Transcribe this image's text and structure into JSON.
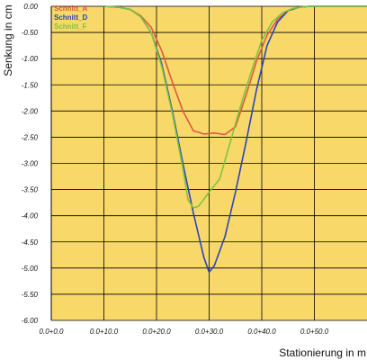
{
  "chart_data": {
    "type": "line",
    "xlabel": "Stationierung in m",
    "ylabel": "Senkung in cm",
    "xlim": [
      0,
      60
    ],
    "ylim": [
      -6,
      0
    ],
    "x_ticks": [
      {
        "value": 0,
        "label": "0.0+0.0"
      },
      {
        "value": 10,
        "label": "0.0+10.0"
      },
      {
        "value": 20,
        "label": "0.0+20.0"
      },
      {
        "value": 30,
        "label": "0.0+30.0"
      },
      {
        "value": 40,
        "label": "0.0+40.0"
      },
      {
        "value": 50,
        "label": "0.0+50.0"
      }
    ],
    "y_ticks": [
      {
        "value": 0,
        "label": "0.00"
      },
      {
        "value": -0.5,
        "label": "-0.50"
      },
      {
        "value": -1,
        "label": "-1.00"
      },
      {
        "value": -1.5,
        "label": "-1.50"
      },
      {
        "value": -2,
        "label": "-2.00"
      },
      {
        "value": -2.5,
        "label": "-2.50"
      },
      {
        "value": -3,
        "label": "-3.00"
      },
      {
        "value": -3.5,
        "label": "-3.50"
      },
      {
        "value": -4,
        "label": "-4.00"
      },
      {
        "value": -4.5,
        "label": "-4.50"
      },
      {
        "value": -5,
        "label": "-5.00"
      },
      {
        "value": -5.5,
        "label": "-5.50"
      },
      {
        "value": -6,
        "label": "-6.00"
      }
    ],
    "grid": true,
    "legend_position": "top-left",
    "colors": {
      "plot_background": "#f9d86a",
      "grid": "#000000"
    },
    "series": [
      {
        "name": "Schnitt_A",
        "color": "#e2583e",
        "x": [
          10,
          13,
          15,
          17,
          19,
          21,
          23,
          25,
          27,
          29,
          31,
          33,
          35,
          37,
          39,
          41,
          43,
          45,
          47,
          49,
          51,
          60
        ],
        "y": [
          0,
          -0.02,
          -0.06,
          -0.18,
          -0.4,
          -0.85,
          -1.45,
          -2.0,
          -2.38,
          -2.44,
          -2.42,
          -2.45,
          -2.3,
          -1.7,
          -1.05,
          -0.55,
          -0.25,
          -0.08,
          -0.02,
          0,
          0,
          0
        ]
      },
      {
        "name": "Schnitt_D",
        "color": "#2b44b8",
        "x": [
          10,
          13,
          15,
          17,
          19,
          21,
          23,
          25,
          27,
          29,
          30,
          31,
          33,
          35,
          37,
          39,
          41,
          43,
          45,
          47,
          49,
          51,
          60
        ],
        "y": [
          0,
          -0.02,
          -0.06,
          -0.2,
          -0.5,
          -1.1,
          -2.0,
          -3.0,
          -3.95,
          -4.8,
          -5.08,
          -4.95,
          -4.4,
          -3.55,
          -2.6,
          -1.6,
          -0.75,
          -0.3,
          -0.08,
          -0.02,
          0,
          0,
          0
        ]
      },
      {
        "name": "Schnitt_F",
        "color": "#7ec43c",
        "x": [
          10,
          13,
          15,
          17,
          19,
          21,
          23,
          25,
          26,
          27,
          28,
          30,
          32,
          34,
          36,
          38,
          40,
          42,
          44,
          46,
          48,
          50,
          60
        ],
        "y": [
          0,
          -0.02,
          -0.06,
          -0.2,
          -0.5,
          -1.15,
          -2.05,
          -3.1,
          -3.7,
          -3.85,
          -3.82,
          -3.55,
          -3.3,
          -2.6,
          -1.9,
          -1.25,
          -0.65,
          -0.3,
          -0.12,
          -0.04,
          -0.01,
          0,
          0
        ]
      }
    ]
  }
}
